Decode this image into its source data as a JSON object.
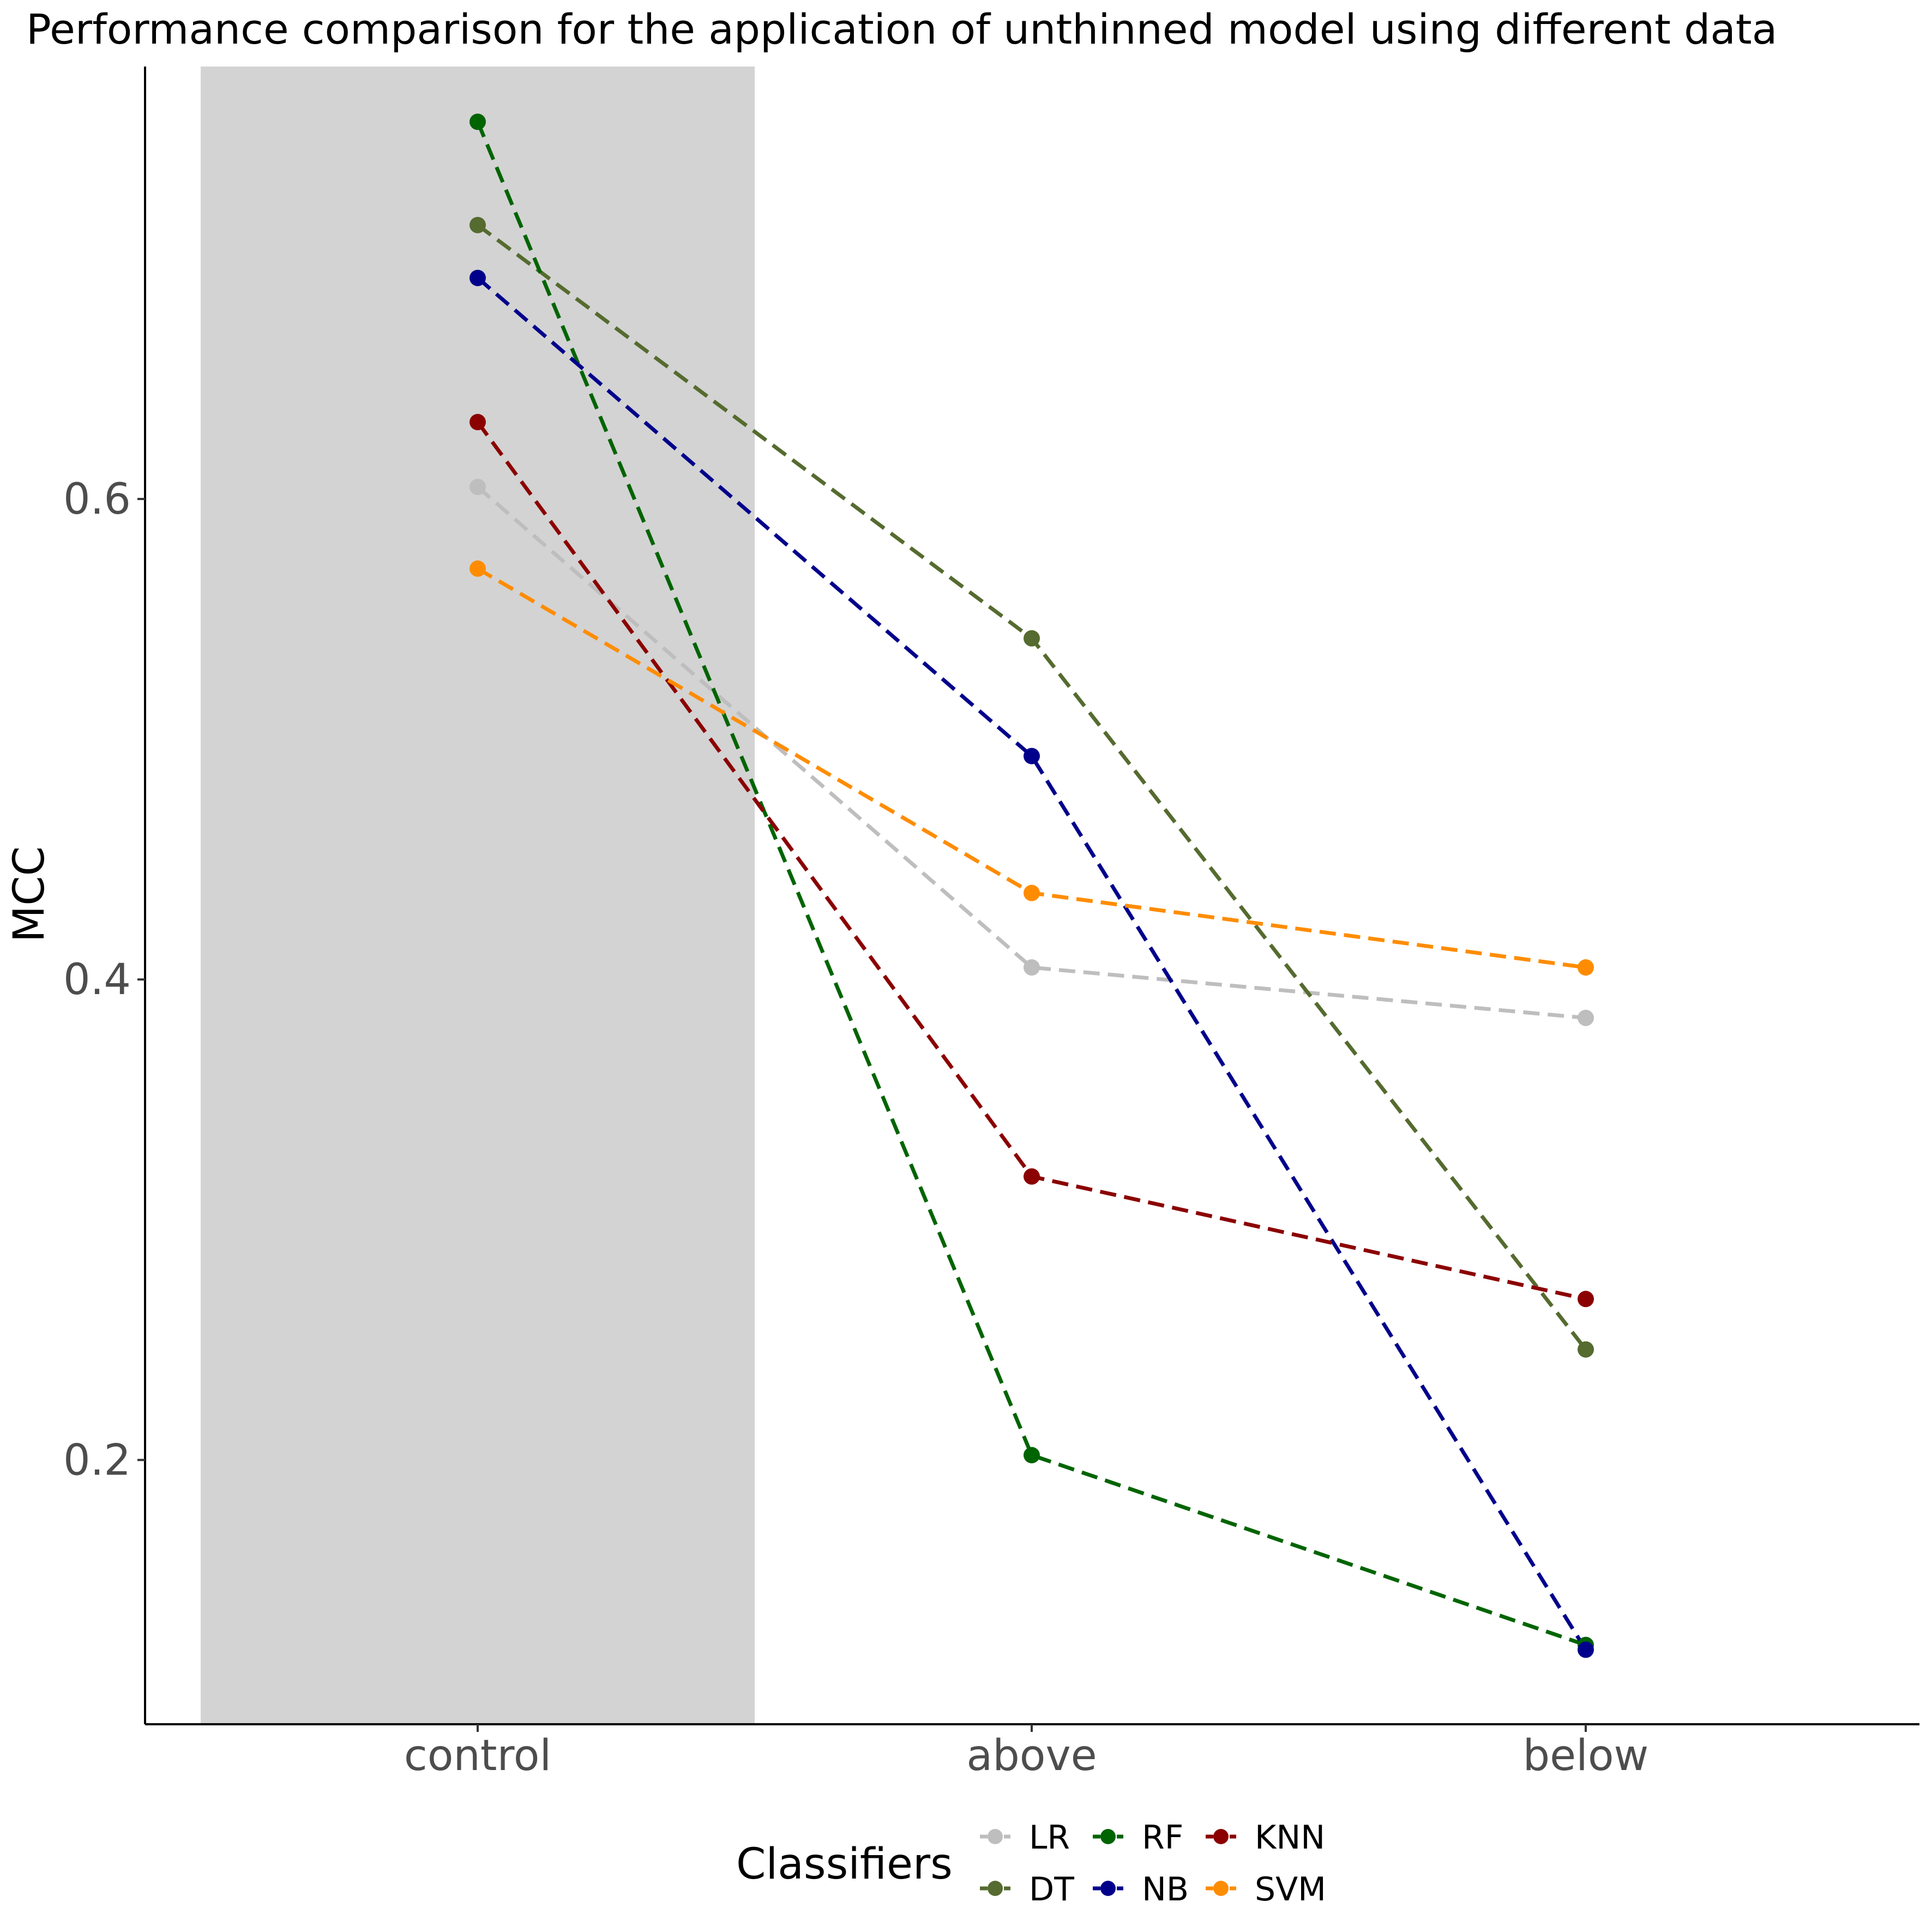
{
  "chart_data": {
    "type": "line",
    "title": "Performance comparison for the application of unthinned model using different data",
    "xlabel": "",
    "ylabel": "MCC",
    "categories": [
      "control",
      "above",
      "below"
    ],
    "highlighted_category": "control",
    "ylim": [
      0.09,
      0.78
    ],
    "yticks": [
      0.2,
      0.4,
      0.6
    ],
    "ytick_labels": [
      "0.2",
      "0.4",
      "0.6"
    ],
    "line_style": "dashed",
    "grid": false,
    "legend_title": "Classifiers",
    "legend_position": "bottom",
    "series": [
      {
        "name": "LR",
        "color": "#bebebe",
        "values": [
          0.605,
          0.405,
          0.384
        ]
      },
      {
        "name": "DT",
        "color": "#556b2f",
        "values": [
          0.714,
          0.542,
          0.246
        ]
      },
      {
        "name": "RF",
        "color": "#006400",
        "values": [
          0.757,
          0.202,
          0.123
        ]
      },
      {
        "name": "NB",
        "color": "#00008b",
        "values": [
          0.692,
          0.493,
          0.121
        ]
      },
      {
        "name": "KNN",
        "color": "#8b0000",
        "values": [
          0.632,
          0.318,
          0.267
        ]
      },
      {
        "name": "SVM",
        "color": "#ff8c00",
        "values": [
          0.571,
          0.436,
          0.405
        ]
      }
    ]
  }
}
